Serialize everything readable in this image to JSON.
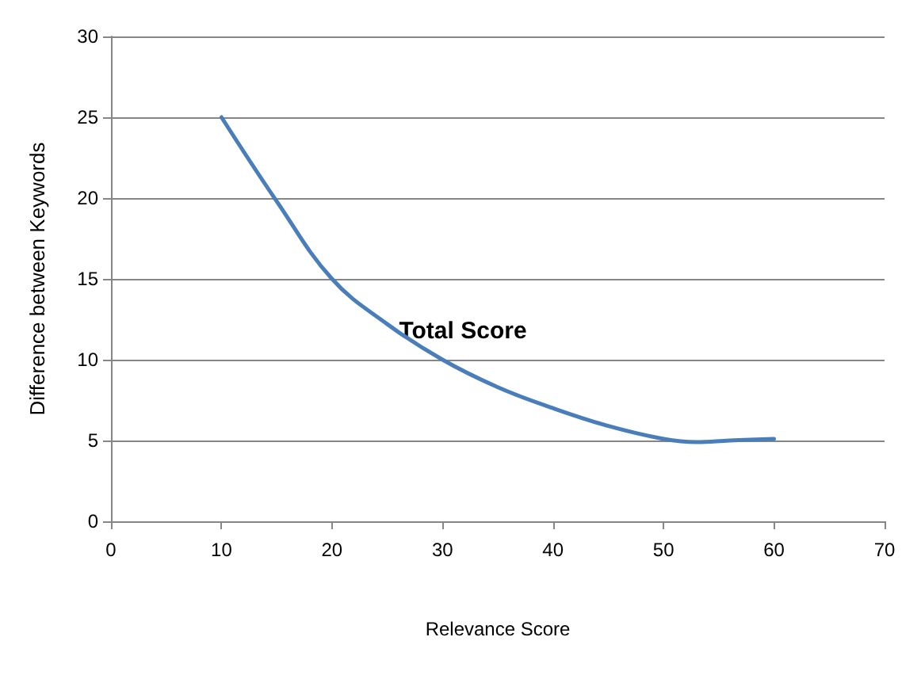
{
  "chart_data": {
    "type": "line",
    "xlabel": "Relevance Score",
    "ylabel": "Difference between Keywords",
    "series": [
      {
        "color": "#4a7ebb",
        "x": [
          10,
          15,
          20,
          25,
          30,
          35,
          40,
          45,
          50,
          53,
          56,
          60
        ],
        "values": [
          25,
          19.8,
          15,
          12.2,
          10,
          8.3,
          7,
          5.9,
          5.1,
          4.9,
          5,
          5.1
        ]
      }
    ],
    "annotations": [
      "Total Score"
    ],
    "xlim": [
      0,
      70
    ],
    "xticks": [
      0,
      10,
      20,
      30,
      40,
      50,
      60,
      70
    ],
    "ylim": [
      0,
      30
    ],
    "yticks": [
      0,
      5,
      10,
      15,
      20,
      25,
      30
    ],
    "grid": "y",
    "marker": "none",
    "line_style": "solid"
  }
}
